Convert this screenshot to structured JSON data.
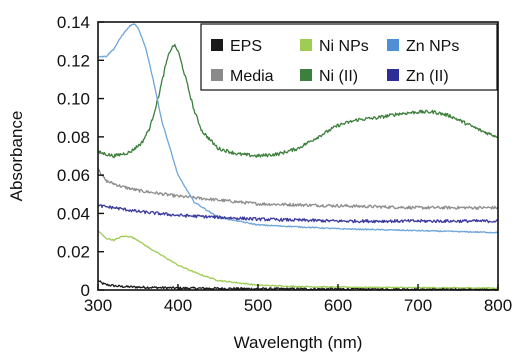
{
  "chart_data": {
    "type": "line",
    "title": "",
    "xlabel": "Wavelength (nm)",
    "ylabel": "Absorbance",
    "xlim": [
      300,
      800
    ],
    "ylim": [
      0,
      0.14
    ],
    "xticks": [
      300,
      400,
      500,
      600,
      700,
      800
    ],
    "xtick_labels": [
      "300",
      "400",
      "500",
      "600",
      "700",
      "800"
    ],
    "yticks": [
      0,
      0.02,
      0.04,
      0.06,
      0.08,
      0.1,
      0.12,
      0.14
    ],
    "ytick_labels": [
      "0",
      "0.02",
      "0.04",
      "0.06",
      "0.08",
      "0.10",
      "0.12",
      "0.14"
    ],
    "grid": false,
    "legend_position": "top-right",
    "series": [
      {
        "name": "EPS",
        "color": "#1a1a1a",
        "legend_color": "#1a1a1a",
        "noise": 0.0006,
        "x": [
          300,
          305,
          310,
          320,
          330,
          350,
          400,
          450,
          500,
          600,
          700,
          800
        ],
        "y": [
          0.005,
          0.0035,
          0.0028,
          0.0022,
          0.0018,
          0.0015,
          0.001,
          0.0008,
          0.0006,
          0.0005,
          0.0004,
          0.0004
        ]
      },
      {
        "name": "Media",
        "color": "#8e8e8e",
        "legend_color": "#8a8a8a",
        "noise": 0.0008,
        "x": [
          300,
          305,
          310,
          330,
          350,
          400,
          450,
          500,
          600,
          700,
          800
        ],
        "y": [
          0.064,
          0.06,
          0.057,
          0.054,
          0.052,
          0.049,
          0.047,
          0.045,
          0.044,
          0.043,
          0.043
        ]
      },
      {
        "name": "Ni NPs",
        "color": "#9fcc55",
        "legend_color": "#9fcc55",
        "noise": 0.0003,
        "x": [
          300,
          310,
          320,
          330,
          340,
          350,
          360,
          380,
          400,
          425,
          450,
          500,
          550,
          600,
          700,
          800
        ],
        "y": [
          0.031,
          0.027,
          0.026,
          0.028,
          0.028,
          0.026,
          0.023,
          0.018,
          0.013,
          0.0085,
          0.005,
          0.0025,
          0.0018,
          0.0015,
          0.0012,
          0.001
        ]
      },
      {
        "name": "Ni (II)",
        "color": "#3d7f3d",
        "legend_color": "#3d7f3d",
        "noise": 0.0009,
        "x": [
          300,
          320,
          340,
          355,
          365,
          375,
          385,
          390,
          395,
          400,
          410,
          420,
          430,
          450,
          475,
          500,
          525,
          550,
          575,
          600,
          625,
          650,
          675,
          700,
          720,
          740,
          760,
          780,
          800
        ],
        "y": [
          0.072,
          0.07,
          0.072,
          0.077,
          0.085,
          0.1,
          0.118,
          0.125,
          0.128,
          0.125,
          0.11,
          0.094,
          0.083,
          0.074,
          0.071,
          0.07,
          0.071,
          0.074,
          0.08,
          0.086,
          0.089,
          0.09,
          0.092,
          0.093,
          0.093,
          0.091,
          0.087,
          0.083,
          0.08
        ]
      },
      {
        "name": "Zn NPs",
        "color": "#6fa6d9",
        "legend_color": "#4f8fd3",
        "noise": 0.0003,
        "x": [
          300,
          310,
          320,
          330,
          340,
          345,
          350,
          360,
          370,
          380,
          400,
          420,
          450,
          500,
          550,
          600,
          700,
          800
        ],
        "y": [
          0.122,
          0.122,
          0.126,
          0.133,
          0.138,
          0.139,
          0.137,
          0.126,
          0.108,
          0.088,
          0.06,
          0.046,
          0.038,
          0.034,
          0.033,
          0.032,
          0.031,
          0.03
        ]
      },
      {
        "name": "Zn (II)",
        "color": "#3a3aa0",
        "legend_color": "#2e2e96",
        "noise": 0.0008,
        "x": [
          300,
          320,
          350,
          400,
          450,
          500,
          600,
          700,
          800
        ],
        "y": [
          0.044,
          0.043,
          0.041,
          0.039,
          0.038,
          0.037,
          0.036,
          0.036,
          0.036
        ]
      }
    ]
  }
}
